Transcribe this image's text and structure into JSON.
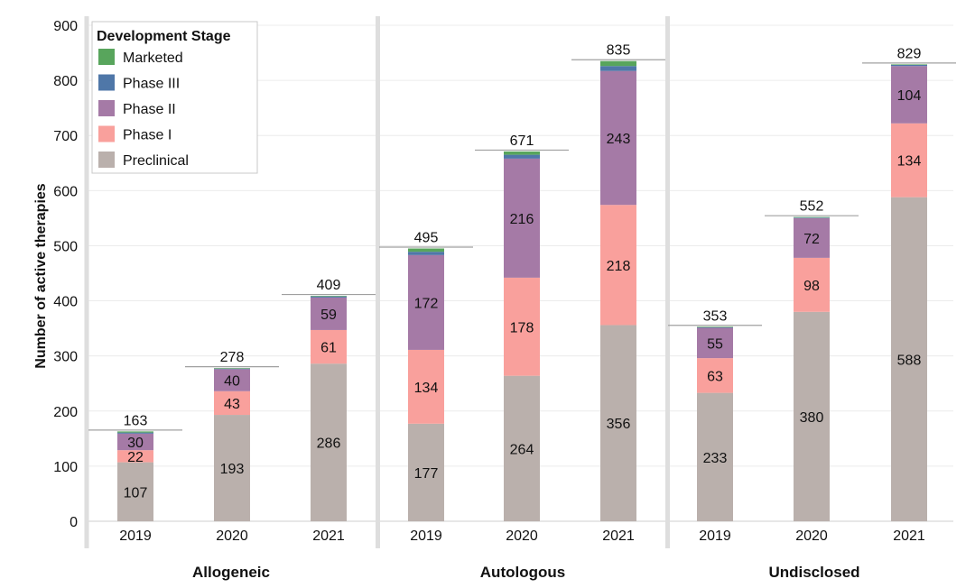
{
  "chart_data": {
    "type": "bar",
    "stacked": true,
    "ylabel": "Number of active therapies",
    "ylim": [
      0,
      900
    ],
    "yticks": [
      0,
      100,
      200,
      300,
      400,
      500,
      600,
      700,
      800,
      900
    ],
    "grid": true,
    "legend": {
      "title": "Development Stage",
      "position": "top-left",
      "entries": [
        "Marketed",
        "Phase III",
        "Phase II",
        "Phase I",
        "Preclinical"
      ]
    },
    "colors": {
      "Marketed": "#58a55c",
      "Phase III": "#4f77a8",
      "Phase II": "#a57aa6",
      "Phase I": "#f9a09c",
      "Preclinical": "#bab0ac"
    },
    "stack_order": [
      "Preclinical",
      "Phase I",
      "Phase II",
      "Phase III",
      "Marketed"
    ],
    "panels": [
      {
        "title": "Allogeneic",
        "categories": [
          "2019",
          "2020",
          "2021"
        ],
        "totals": [
          163,
          278,
          409
        ],
        "series": [
          {
            "name": "Preclinical",
            "values": [
              107,
              193,
              286
            ]
          },
          {
            "name": "Phase I",
            "values": [
              22,
              43,
              61
            ]
          },
          {
            "name": "Phase II",
            "values": [
              30,
              40,
              59
            ]
          },
          {
            "name": "Phase III",
            "values": [
              2,
              1,
              2
            ]
          },
          {
            "name": "Marketed",
            "values": [
              2,
              1,
              1
            ]
          }
        ],
        "labels_shown": [
          "Preclinical",
          "Phase I",
          "Phase II"
        ]
      },
      {
        "title": "Autologous",
        "categories": [
          "2019",
          "2020",
          "2021"
        ],
        "totals": [
          495,
          671,
          835
        ],
        "series": [
          {
            "name": "Preclinical",
            "values": [
              177,
              264,
              356
            ]
          },
          {
            "name": "Phase I",
            "values": [
              134,
              178,
              218
            ]
          },
          {
            "name": "Phase II",
            "values": [
              172,
              216,
              243
            ]
          },
          {
            "name": "Phase III",
            "values": [
              6,
              7,
              9
            ]
          },
          {
            "name": "Marketed",
            "values": [
              6,
              6,
              9
            ]
          }
        ],
        "labels_shown": [
          "Preclinical",
          "Phase I",
          "Phase II"
        ]
      },
      {
        "title": "Undisclosed",
        "categories": [
          "2019",
          "2020",
          "2021"
        ],
        "totals": [
          353,
          552,
          829
        ],
        "series": [
          {
            "name": "Preclinical",
            "values": [
              233,
              380,
              588
            ]
          },
          {
            "name": "Phase I",
            "values": [
              63,
              98,
              134
            ]
          },
          {
            "name": "Phase II",
            "values": [
              55,
              72,
              104
            ]
          },
          {
            "name": "Phase III",
            "values": [
              1,
              1,
              2
            ]
          },
          {
            "name": "Marketed",
            "values": [
              1,
              1,
              1
            ]
          }
        ],
        "labels_shown": [
          "Preclinical",
          "Phase I",
          "Phase II"
        ]
      }
    ]
  }
}
